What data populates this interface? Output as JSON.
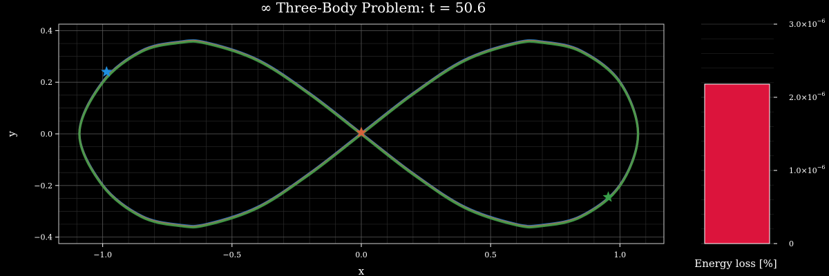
{
  "title": "∞ Three-Body Problem: t = 50.6",
  "chart_data": [
    {
      "type": "line",
      "title": "∞ Three-Body Problem: t = 50.6",
      "xlabel": "x",
      "ylabel": "y",
      "xlim": [
        -1.17,
        1.17
      ],
      "ylim": [
        -0.425,
        0.425
      ],
      "x_ticks": [
        -1.0,
        -0.5,
        0.0,
        0.5,
        1.0
      ],
      "x_tick_labels": [
        "−1.0",
        "−0.5",
        "0.0",
        "0.5",
        "1.0"
      ],
      "y_ticks": [
        -0.4,
        -0.2,
        0.0,
        0.2,
        0.4
      ],
      "y_tick_labels": [
        "−0.4",
        "−0.2",
        "0.0",
        "0.2",
        "0.4"
      ],
      "grid": true,
      "background": "#000000",
      "series": [
        {
          "color": "#1f8fe0",
          "trajectory": [
            [
              0.0,
              0.0
            ],
            [
              0.2,
              0.155
            ],
            [
              0.4,
              0.285
            ],
            [
              0.6,
              0.352
            ],
            [
              0.7,
              0.355
            ],
            [
              0.85,
              0.32
            ],
            [
              1.0,
              0.2
            ],
            [
              1.07,
              0.0
            ],
            [
              1.0,
              -0.2
            ],
            [
              0.85,
              -0.32
            ],
            [
              0.7,
              -0.355
            ],
            [
              0.6,
              -0.352
            ],
            [
              0.4,
              -0.285
            ],
            [
              0.2,
              -0.155
            ],
            [
              0.0,
              0.0
            ],
            [
              -0.2,
              0.155
            ],
            [
              -0.4,
              0.285
            ],
            [
              -0.6,
              0.352
            ],
            [
              -0.7,
              0.355
            ],
            [
              -0.85,
              0.32
            ],
            [
              -1.0,
              0.2
            ],
            [
              -1.09,
              0.0
            ],
            [
              -1.0,
              -0.2
            ],
            [
              -0.85,
              -0.32
            ],
            [
              -0.7,
              -0.355
            ],
            [
              -0.6,
              -0.352
            ],
            [
              -0.4,
              -0.285
            ],
            [
              -0.2,
              -0.155
            ],
            [
              0.0,
              0.0
            ]
          ],
          "current": [
            -0.985,
            0.24
          ]
        },
        {
          "color": "#d2643c",
          "trajectory": [
            [
              0.0,
              0.0
            ],
            [
              0.2,
              0.155
            ],
            [
              0.4,
              0.285
            ],
            [
              0.6,
              0.352
            ],
            [
              0.7,
              0.355
            ],
            [
              0.85,
              0.32
            ],
            [
              1.0,
              0.2
            ],
            [
              1.07,
              0.0
            ],
            [
              1.0,
              -0.2
            ],
            [
              0.85,
              -0.32
            ],
            [
              0.7,
              -0.355
            ],
            [
              0.6,
              -0.352
            ],
            [
              0.4,
              -0.285
            ],
            [
              0.2,
              -0.155
            ],
            [
              0.0,
              0.0
            ],
            [
              -0.2,
              0.155
            ],
            [
              -0.4,
              0.285
            ],
            [
              -0.6,
              0.352
            ],
            [
              -0.7,
              0.355
            ],
            [
              -0.85,
              0.32
            ],
            [
              -1.0,
              0.2
            ],
            [
              -1.09,
              0.0
            ],
            [
              -1.0,
              -0.2
            ],
            [
              -0.85,
              -0.32
            ],
            [
              -0.7,
              -0.355
            ],
            [
              -0.6,
              -0.352
            ],
            [
              -0.4,
              -0.285
            ],
            [
              -0.2,
              -0.155
            ],
            [
              0.0,
              0.0
            ]
          ],
          "current": [
            0.0,
            0.005
          ]
        },
        {
          "color": "#3aa04a",
          "trajectory": [
            [
              0.0,
              0.0
            ],
            [
              0.2,
              0.155
            ],
            [
              0.4,
              0.285
            ],
            [
              0.6,
              0.352
            ],
            [
              0.7,
              0.355
            ],
            [
              0.85,
              0.32
            ],
            [
              1.0,
              0.2
            ],
            [
              1.07,
              0.0
            ],
            [
              1.0,
              -0.2
            ],
            [
              0.85,
              -0.32
            ],
            [
              0.7,
              -0.355
            ],
            [
              0.6,
              -0.352
            ],
            [
              0.4,
              -0.285
            ],
            [
              0.2,
              -0.155
            ],
            [
              0.0,
              0.0
            ],
            [
              -0.2,
              0.155
            ],
            [
              -0.4,
              0.285
            ],
            [
              -0.6,
              0.352
            ],
            [
              -0.7,
              0.355
            ],
            [
              -0.85,
              0.32
            ],
            [
              -1.0,
              0.2
            ],
            [
              -1.09,
              0.0
            ],
            [
              -1.0,
              -0.2
            ],
            [
              -0.85,
              -0.32
            ],
            [
              -0.7,
              -0.355
            ],
            [
              -0.6,
              -0.352
            ],
            [
              -0.4,
              -0.285
            ],
            [
              -0.2,
              -0.155
            ],
            [
              0.0,
              0.0
            ]
          ],
          "current": [
            0.955,
            -0.245
          ]
        }
      ]
    },
    {
      "type": "bar",
      "xlabel": "Energy loss [%]",
      "ylabel": "",
      "ylim": [
        0,
        3e-06
      ],
      "y_ticks": [
        0,
        1e-06,
        2e-06,
        3e-06
      ],
      "y_tick_labels": [
        {
          "base": "0",
          "exp": ""
        },
        {
          "base": "1.0×10",
          "exp": "−6"
        },
        {
          "base": "2.0×10",
          "exp": "−6"
        },
        {
          "base": "3.0×10",
          "exp": "−6"
        }
      ],
      "values": [
        2.18e-06
      ],
      "bar_color": "#dc143c",
      "bar_edge_color": "#ffffff"
    }
  ]
}
